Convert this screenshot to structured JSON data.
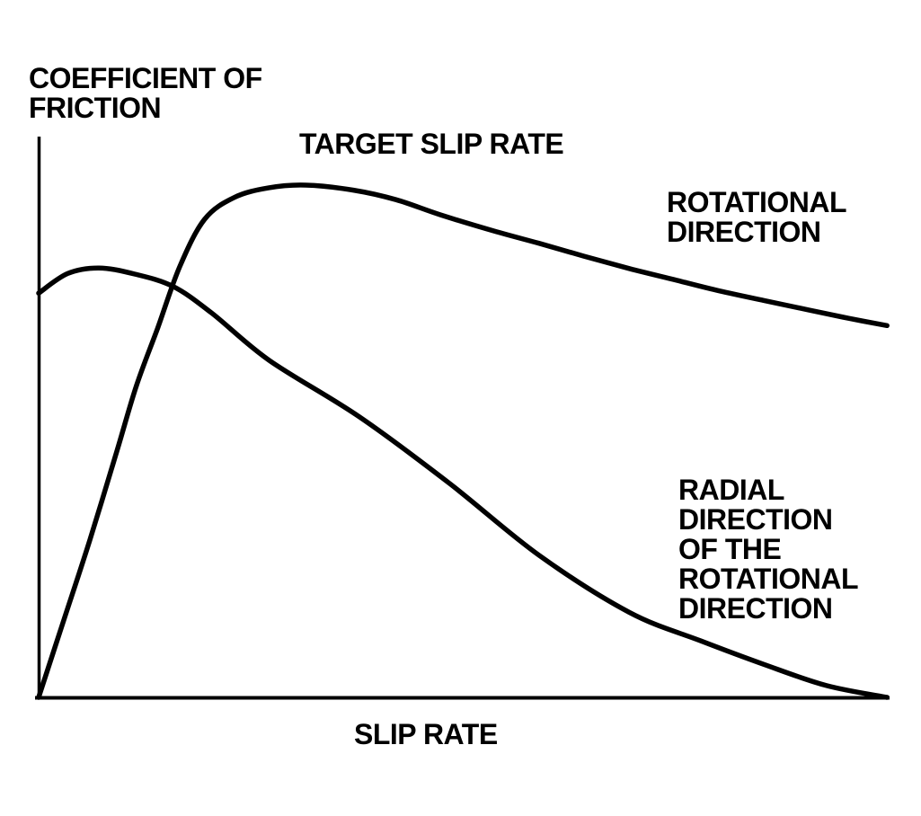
{
  "figure": {
    "background": "#ffffff",
    "ink_color": "#000000"
  },
  "labels": {
    "y_axis_title": {
      "lines": [
        "COEFFICIENT OF",
        "FRICTION"
      ]
    },
    "target_slip_rate": "TARGET SLIP RATE",
    "rotational_direction": {
      "lines": [
        "ROTATIONAL",
        "DIRECTION"
      ]
    },
    "radial_direction": {
      "lines": [
        "RADIAL",
        "DIRECTION",
        "OF THE",
        "ROTATIONAL",
        "DIRECTION"
      ]
    },
    "x_axis_title": "SLIP RATE"
  },
  "chart_data": {
    "type": "line",
    "title": "",
    "xlabel": "SLIP RATE",
    "ylabel": "COEFFICIENT OF FRICTION",
    "x_axis": {
      "range": [
        0,
        1
      ],
      "ticks": []
    },
    "y_axis": {
      "range": [
        0,
        1
      ],
      "ticks": []
    },
    "grid": false,
    "legend_position": "inline-text-labels",
    "series": [
      {
        "name": "ROTATIONAL DIRECTION",
        "points": [
          [
            0.0,
            0.0
          ],
          [
            0.03,
            0.14
          ],
          [
            0.06,
            0.28
          ],
          [
            0.092,
            0.44
          ],
          [
            0.115,
            0.557
          ],
          [
            0.14,
            0.66
          ],
          [
            0.166,
            0.77
          ],
          [
            0.195,
            0.854
          ],
          [
            0.23,
            0.893
          ],
          [
            0.27,
            0.91
          ],
          [
            0.314,
            0.915
          ],
          [
            0.37,
            0.906
          ],
          [
            0.42,
            0.889
          ],
          [
            0.472,
            0.862
          ],
          [
            0.535,
            0.833
          ],
          [
            0.588,
            0.811
          ],
          [
            0.641,
            0.788
          ],
          [
            0.694,
            0.766
          ],
          [
            0.747,
            0.746
          ],
          [
            0.8,
            0.726
          ],
          [
            0.852,
            0.709
          ],
          [
            0.905,
            0.692
          ],
          [
            0.952,
            0.677
          ],
          [
            0.997,
            0.664
          ]
        ]
      },
      {
        "name": "RADIAL DIRECTION OF THE ROTATIONAL DIRECTION",
        "points": [
          [
            0.0,
            0.722
          ],
          [
            0.034,
            0.757
          ],
          [
            0.071,
            0.767
          ],
          [
            0.113,
            0.756
          ],
          [
            0.158,
            0.734
          ],
          [
            0.203,
            0.687
          ],
          [
            0.271,
            0.602
          ],
          [
            0.377,
            0.501
          ],
          [
            0.483,
            0.382
          ],
          [
            0.588,
            0.254
          ],
          [
            0.694,
            0.152
          ],
          [
            0.778,
            0.101
          ],
          [
            0.852,
            0.059
          ],
          [
            0.926,
            0.021
          ],
          [
            0.997,
            0.0
          ]
        ]
      }
    ],
    "annotations": [
      {
        "text": "TARGET SLIP RATE",
        "x": 0.31
      }
    ]
  }
}
